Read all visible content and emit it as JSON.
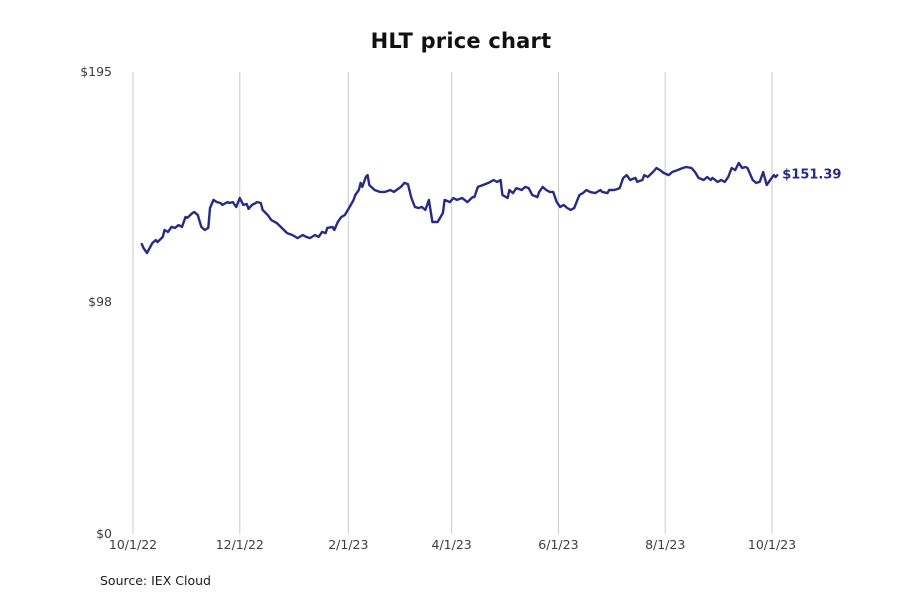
{
  "chart": {
    "title": "HLT price chart",
    "last_price_label": "$151.39",
    "source": "Source: IEX Cloud"
  },
  "chart_data": {
    "type": "line",
    "title": "HLT price chart",
    "symbol": "HLT",
    "xlabel": "",
    "ylabel": "",
    "ylim": [
      0,
      195
    ],
    "x_unit": "days since 10/1/22",
    "grid": "vertical-only",
    "legend": "none",
    "line_color": "#2a2a85",
    "grid_color": "#c9c9c9",
    "tick_label_color": "#3d3d3d",
    "last_price": 151.39,
    "y_ticks": [
      {
        "label": "$195",
        "value": 195
      },
      {
        "label": "$98",
        "value": 98
      },
      {
        "label": "$0",
        "value": 0
      }
    ],
    "x_ticks": [
      {
        "label": "10/1/22",
        "day": 0
      },
      {
        "label": "12/1/22",
        "day": 61
      },
      {
        "label": "2/1/23",
        "day": 123
      },
      {
        "label": "4/1/23",
        "day": 182
      },
      {
        "label": "6/1/23",
        "day": 243
      },
      {
        "label": "8/1/23",
        "day": 304
      },
      {
        "label": "10/1/23",
        "day": 365
      }
    ],
    "points": [
      [
        5,
        122.4
      ],
      [
        6,
        120.7
      ],
      [
        8,
        118.6
      ],
      [
        11,
        122.8
      ],
      [
        13,
        124.1
      ],
      [
        14,
        123.2
      ],
      [
        17,
        125.4
      ],
      [
        18,
        128.3
      ],
      [
        20,
        127.5
      ],
      [
        22,
        129.6
      ],
      [
        24,
        129.2
      ],
      [
        26,
        130.4
      ],
      [
        28,
        129.6
      ],
      [
        30,
        133.8
      ],
      [
        31,
        133.4
      ],
      [
        34,
        135.5
      ],
      [
        35,
        135.9
      ],
      [
        37,
        134.6
      ],
      [
        39,
        129.6
      ],
      [
        41,
        128.3
      ],
      [
        43,
        129.2
      ],
      [
        44,
        137.6
      ],
      [
        46,
        141.0
      ],
      [
        48,
        140.1
      ],
      [
        50,
        139.7
      ],
      [
        51,
        138.9
      ],
      [
        54,
        140.1
      ],
      [
        55,
        139.7
      ],
      [
        57,
        140.1
      ],
      [
        59,
        138.0
      ],
      [
        61,
        141.8
      ],
      [
        63,
        138.9
      ],
      [
        65,
        139.3
      ],
      [
        66,
        137.2
      ],
      [
        68,
        138.9
      ],
      [
        71,
        140.1
      ],
      [
        73,
        139.7
      ],
      [
        74,
        136.8
      ],
      [
        77,
        134.6
      ],
      [
        79,
        132.5
      ],
      [
        82,
        131.3
      ],
      [
        85,
        129.2
      ],
      [
        88,
        127.0
      ],
      [
        91,
        126.2
      ],
      [
        94,
        124.9
      ],
      [
        97,
        126.2
      ],
      [
        99,
        125.4
      ],
      [
        101,
        124.9
      ],
      [
        104,
        126.2
      ],
      [
        106,
        125.4
      ],
      [
        108,
        127.5
      ],
      [
        110,
        127.0
      ],
      [
        111,
        129.2
      ],
      [
        114,
        129.6
      ],
      [
        115,
        128.3
      ],
      [
        117,
        131.7
      ],
      [
        119,
        133.8
      ],
      [
        121,
        134.6
      ],
      [
        122,
        135.9
      ],
      [
        124,
        138.4
      ],
      [
        126,
        141.0
      ],
      [
        127,
        143.1
      ],
      [
        129,
        145.2
      ],
      [
        130,
        148.2
      ],
      [
        131,
        146.5
      ],
      [
        133,
        150.7
      ],
      [
        134,
        151.5
      ],
      [
        135,
        147.3
      ],
      [
        138,
        145.2
      ],
      [
        141,
        144.4
      ],
      [
        144,
        144.4
      ],
      [
        147,
        145.2
      ],
      [
        149,
        144.4
      ],
      [
        153,
        146.5
      ],
      [
        155,
        148.2
      ],
      [
        157,
        147.7
      ],
      [
        159,
        141.8
      ],
      [
        161,
        138.0
      ],
      [
        163,
        137.6
      ],
      [
        165,
        138.0
      ],
      [
        167,
        136.8
      ],
      [
        169,
        141.0
      ],
      [
        171,
        131.7
      ],
      [
        174,
        131.7
      ],
      [
        177,
        135.5
      ],
      [
        178,
        141.0
      ],
      [
        181,
        140.1
      ],
      [
        183,
        141.8
      ],
      [
        185,
        141.0
      ],
      [
        188,
        141.8
      ],
      [
        191,
        140.1
      ],
      [
        194,
        142.2
      ],
      [
        195,
        142.2
      ],
      [
        197,
        146.5
      ],
      [
        200,
        147.3
      ],
      [
        203,
        148.2
      ],
      [
        206,
        149.4
      ],
      [
        208,
        148.6
      ],
      [
        210,
        149.4
      ],
      [
        211,
        143.1
      ],
      [
        214,
        141.8
      ],
      [
        215,
        145.2
      ],
      [
        217,
        143.9
      ],
      [
        219,
        146.0
      ],
      [
        222,
        145.2
      ],
      [
        224,
        146.5
      ],
      [
        226,
        146.0
      ],
      [
        228,
        143.1
      ],
      [
        231,
        142.2
      ],
      [
        232,
        144.4
      ],
      [
        234,
        146.5
      ],
      [
        236,
        145.2
      ],
      [
        238,
        144.4
      ],
      [
        240,
        144.4
      ],
      [
        242,
        140.1
      ],
      [
        244,
        138.0
      ],
      [
        246,
        138.9
      ],
      [
        248,
        137.6
      ],
      [
        250,
        136.8
      ],
      [
        252,
        137.6
      ],
      [
        255,
        143.1
      ],
      [
        257,
        143.9
      ],
      [
        259,
        145.2
      ],
      [
        261,
        144.4
      ],
      [
        264,
        143.9
      ],
      [
        267,
        145.2
      ],
      [
        268,
        144.4
      ],
      [
        271,
        143.9
      ],
      [
        272,
        145.2
      ],
      [
        275,
        145.2
      ],
      [
        278,
        146.0
      ],
      [
        280,
        150.3
      ],
      [
        282,
        151.5
      ],
      [
        284,
        149.4
      ],
      [
        287,
        150.3
      ],
      [
        288,
        148.6
      ],
      [
        291,
        149.4
      ],
      [
        292,
        151.5
      ],
      [
        294,
        150.7
      ],
      [
        297,
        152.8
      ],
      [
        299,
        154.5
      ],
      [
        301,
        153.6
      ],
      [
        303,
        152.4
      ],
      [
        306,
        151.5
      ],
      [
        308,
        152.8
      ],
      [
        311,
        153.6
      ],
      [
        314,
        154.5
      ],
      [
        316,
        154.9
      ],
      [
        319,
        154.5
      ],
      [
        321,
        152.8
      ],
      [
        323,
        150.3
      ],
      [
        326,
        149.4
      ],
      [
        328,
        150.7
      ],
      [
        330,
        149.4
      ],
      [
        331,
        150.3
      ],
      [
        334,
        148.6
      ],
      [
        336,
        149.4
      ],
      [
        338,
        148.6
      ],
      [
        340,
        150.7
      ],
      [
        342,
        154.5
      ],
      [
        344,
        153.6
      ],
      [
        346,
        156.6
      ],
      [
        348,
        154.5
      ],
      [
        350,
        154.9
      ],
      [
        351,
        154.5
      ],
      [
        354,
        149.4
      ],
      [
        356,
        148.2
      ],
      [
        358,
        148.6
      ],
      [
        360,
        152.8
      ],
      [
        362,
        147.3
      ],
      [
        364,
        149.4
      ],
      [
        366,
        151.5
      ],
      [
        367,
        150.7
      ],
      [
        368,
        151.39
      ]
    ]
  }
}
